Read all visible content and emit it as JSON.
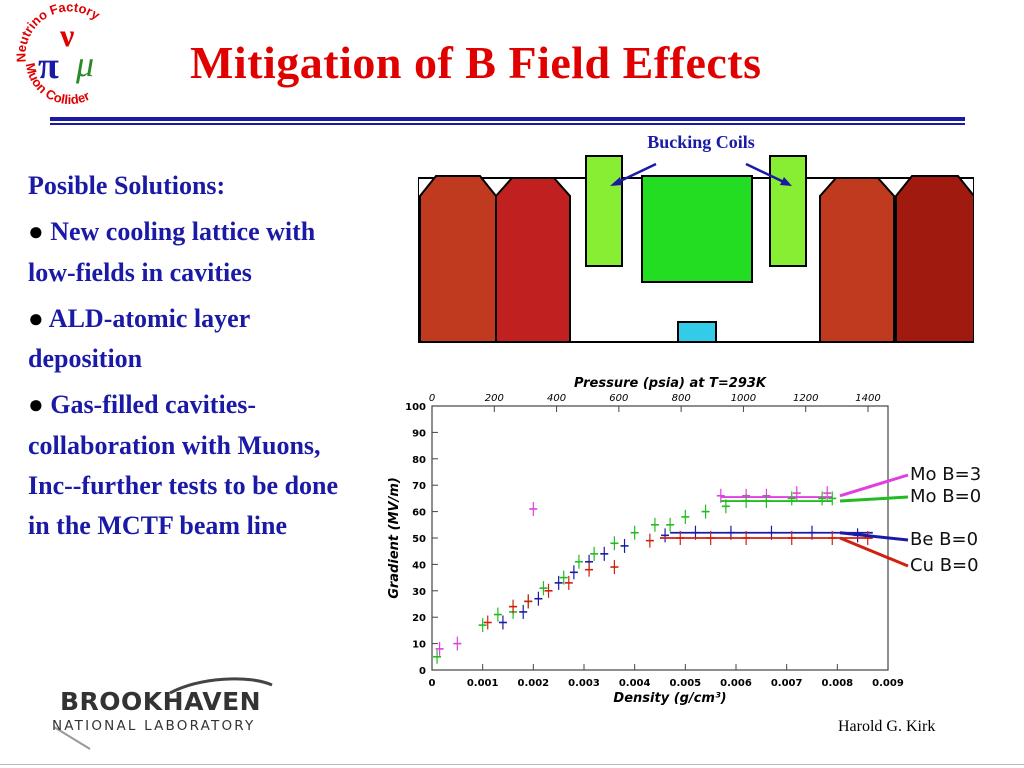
{
  "slide": {
    "title": "Mitigation of B Field Effects",
    "author": "Harold G. Kirk"
  },
  "logo": {
    "ring_top": "Neutrino Factory",
    "ring_bottom": "Muon Collider",
    "glyphs": "νπμ",
    "colors": {
      "ring": "#e00000",
      "nu": "#e00000",
      "pi": "#1a1aa6",
      "mu": "#2a8a2a"
    }
  },
  "body": {
    "heading": "Posible Solutions:",
    "bullets": [
      "New cooling lattice with low-fields in cavities",
      "ALD-atomic layer deposition",
      "Gas-filled cavities-collaboration with Muons, Inc--further tests to be done in the MCTF beam line"
    ],
    "bullet_glyph": "●"
  },
  "diagram": {
    "label": "Bucking Coils",
    "colors": {
      "cavity": "#c02818",
      "coil": "#88ee33",
      "magnet": "#22dd22",
      "beam": "#33cce8",
      "arrow": "#1a1aa6"
    }
  },
  "brookhaven": {
    "name": "BROOKHAVEN",
    "sub": "NATIONAL LABORATORY"
  },
  "chart_data": {
    "type": "scatter",
    "title": "Pressure (psia) at T=293K",
    "xlabel": "Density (g/cm³)",
    "ylabel": "Gradient (MV/m)",
    "xlim": [
      0,
      0.009
    ],
    "ylim": [
      0,
      100
    ],
    "x_ticks": [
      "0",
      "0.001",
      "0.002",
      "0.003",
      "0.004",
      "0.005",
      "0.006",
      "0.007",
      "0.008",
      "0.009"
    ],
    "y_ticks": [
      "0",
      "10",
      "20",
      "30",
      "40",
      "50",
      "60",
      "70",
      "80",
      "90",
      "100"
    ],
    "top_ticks": [
      "0",
      "200",
      "400",
      "600",
      "800",
      "1000",
      "1200",
      "1400"
    ],
    "series": [
      {
        "name": "Mo B=3",
        "color": "#e040e0",
        "points": [
          [
            0.00015,
            8
          ],
          [
            0.0005,
            10
          ],
          [
            0.002,
            61
          ],
          [
            0.0057,
            66
          ],
          [
            0.0062,
            66
          ],
          [
            0.0066,
            66
          ],
          [
            0.0072,
            67
          ],
          [
            0.0078,
            67
          ]
        ],
        "plateau": [
          0.0057,
          0.0079,
          65.5
        ]
      },
      {
        "name": "Mo B=0",
        "color": "#22bb22",
        "points": [
          [
            0.0001,
            5
          ],
          [
            0.001,
            17
          ],
          [
            0.0013,
            21
          ],
          [
            0.0016,
            22
          ],
          [
            0.0019,
            26
          ],
          [
            0.0022,
            31
          ],
          [
            0.0026,
            35
          ],
          [
            0.0029,
            41
          ],
          [
            0.0032,
            44
          ],
          [
            0.0036,
            48
          ],
          [
            0.004,
            52
          ],
          [
            0.0044,
            55
          ],
          [
            0.0047,
            55
          ],
          [
            0.005,
            58
          ],
          [
            0.0054,
            60
          ],
          [
            0.0058,
            62
          ],
          [
            0.0062,
            64
          ],
          [
            0.0066,
            64
          ],
          [
            0.0071,
            65
          ],
          [
            0.0077,
            65
          ],
          [
            0.0079,
            65
          ]
        ],
        "plateau": [
          0.0057,
          0.0079,
          64
        ]
      },
      {
        "name": "Be B=0",
        "color": "#1a1aa6",
        "points": [
          [
            0.0014,
            18
          ],
          [
            0.0018,
            22
          ],
          [
            0.0021,
            27
          ],
          [
            0.0025,
            33
          ],
          [
            0.0028,
            37
          ],
          [
            0.0031,
            41
          ],
          [
            0.0034,
            44
          ],
          [
            0.0038,
            47
          ],
          [
            0.0046,
            51
          ],
          [
            0.0052,
            52
          ],
          [
            0.0059,
            52
          ],
          [
            0.0067,
            52
          ],
          [
            0.0075,
            52
          ],
          [
            0.0084,
            51
          ]
        ],
        "plateau": [
          0.0047,
          0.0087,
          52
        ]
      },
      {
        "name": "Cu B=0",
        "color": "#d02010",
        "points": [
          [
            0.0011,
            18
          ],
          [
            0.0016,
            24
          ],
          [
            0.0019,
            26
          ],
          [
            0.0023,
            30
          ],
          [
            0.0027,
            33
          ],
          [
            0.0031,
            38
          ],
          [
            0.0036,
            39
          ],
          [
            0.0043,
            49
          ],
          [
            0.0049,
            50
          ],
          [
            0.0055,
            50
          ],
          [
            0.0062,
            50
          ],
          [
            0.0071,
            50
          ],
          [
            0.0079,
            50
          ],
          [
            0.0086,
            50
          ]
        ],
        "plateau": [
          0.0045,
          0.0087,
          50
        ]
      }
    ],
    "legend_placement": "right",
    "grid": false
  }
}
